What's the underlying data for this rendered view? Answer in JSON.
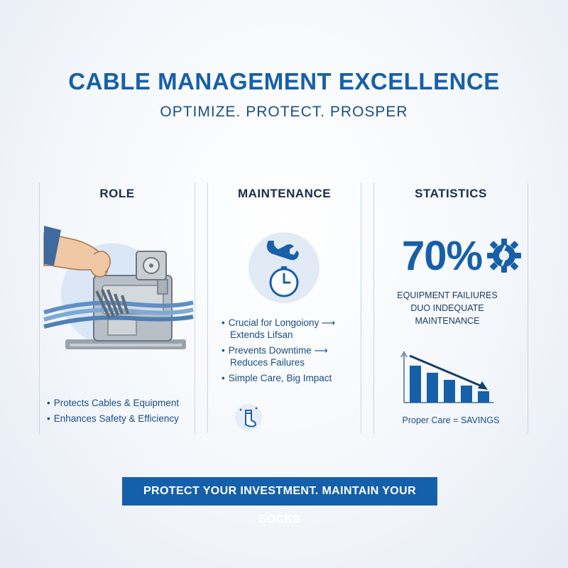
{
  "header": {
    "title": "CABLE MANAGEMENT EXCELLENCE",
    "subtitle": "OPTIMIZE. PROTECT. PROSPER"
  },
  "columns": {
    "role": {
      "title": "ROLE",
      "illustration_icon": "hand-tying-cables-on-machine-icon",
      "bullets": [
        "Protects Cables & Equipment",
        "Enhances Safety & Efficiency"
      ]
    },
    "maintenance": {
      "title": "MAINTENANCE",
      "icons": [
        "wrench-icon",
        "clock-icon",
        "sock-icon"
      ],
      "bullets": [
        {
          "line1": "Crucial for Longoiony ⟶",
          "line2": "Extends Lifsan"
        },
        {
          "line1": "Prevents Downtime ⟶",
          "line2": "Reduces Failures"
        },
        {
          "line1": "Simple Care, Big Impact",
          "line2": ""
        }
      ]
    },
    "statistics": {
      "title": "STATISTICS",
      "stat_value": "70%",
      "stat_icon": "broken-gear-icon",
      "caption_lines": [
        "EQUIPMENT FAILIURES",
        "DUO INDEQUATE",
        "MAINTENANCE"
      ],
      "chart_icon": "declining-bar-chart-icon",
      "footer": "Proper Care = SAVINGS"
    }
  },
  "banner": {
    "text": "PROTECT YOUR INVESTMENT. MAINTAIN YOUR SOCKS"
  },
  "colors": {
    "accent": "#1760a8",
    "banner_bg": "#1560aa",
    "text_dark": "#1a2d4a"
  }
}
